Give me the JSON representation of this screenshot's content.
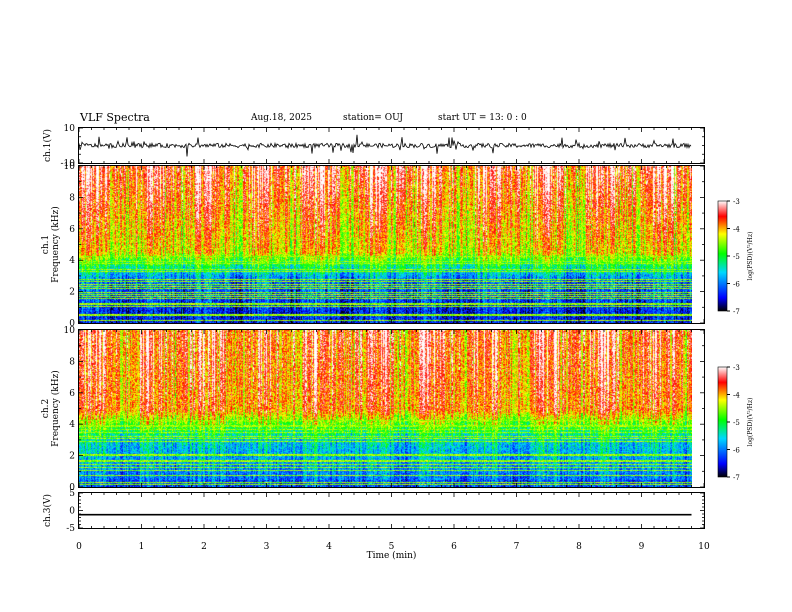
{
  "header": {
    "title": "VLF Spectra",
    "date": "Aug.18, 2025",
    "station": "station= OUJ",
    "start": "start  UT =   13: 0  : 0"
  },
  "chart_data": [
    {
      "type": "line",
      "name": "ch1-waveform",
      "ylabel": "ch.1(V)",
      "ylim": [
        -10,
        10
      ],
      "yticks": [
        10,
        -10
      ],
      "xlim": [
        0,
        10
      ],
      "x": [
        0,
        9.8
      ],
      "y": [
        0,
        0
      ]
    },
    {
      "type": "heatmap",
      "name": "ch1-spectrogram",
      "ylabel": "ch.1\nFrequency  (kHz)",
      "ylim": [
        0,
        10
      ],
      "yticks": [
        0,
        2,
        4,
        6,
        8,
        10
      ],
      "xlim": [
        0,
        10
      ],
      "data_x_range": [
        0,
        9.8
      ],
      "colorbar": {
        "min": -7,
        "max": -3,
        "ticks": [
          -3,
          -4,
          -5,
          -6,
          -7
        ],
        "label": "log(PSD)(V²/Hz)"
      }
    },
    {
      "type": "heatmap",
      "name": "ch2-spectrogram",
      "ylabel": "ch.2\nFrequency  (kHz)",
      "ylim": [
        0,
        10
      ],
      "yticks": [
        0,
        2,
        4,
        6,
        8,
        10
      ],
      "xlim": [
        0,
        10
      ],
      "data_x_range": [
        0,
        9.8
      ],
      "colorbar": {
        "min": -7,
        "max": -3,
        "ticks": [
          -3,
          -4,
          -5,
          -6,
          -7
        ],
        "label": "log(PSD)(V²/Hz)"
      }
    },
    {
      "type": "line",
      "name": "ch3-waveform",
      "ylabel": "ch.3(V)",
      "ylim": [
        -5,
        5
      ],
      "yticks": [
        5,
        0,
        -5
      ],
      "xlim": [
        0,
        10
      ],
      "x": [
        0,
        9.8
      ],
      "y": [
        -1.2,
        -1.2
      ]
    }
  ],
  "x_axis": {
    "label": "Time  (min)",
    "ticks": [
      0,
      1,
      2,
      3,
      4,
      5,
      6,
      7,
      8,
      9,
      10
    ]
  },
  "colors": {
    "colormap": [
      "#000000",
      "#0000ff",
      "#00d8ff",
      "#00ff00",
      "#ffff00",
      "#ff0000",
      "#ffffff"
    ]
  }
}
